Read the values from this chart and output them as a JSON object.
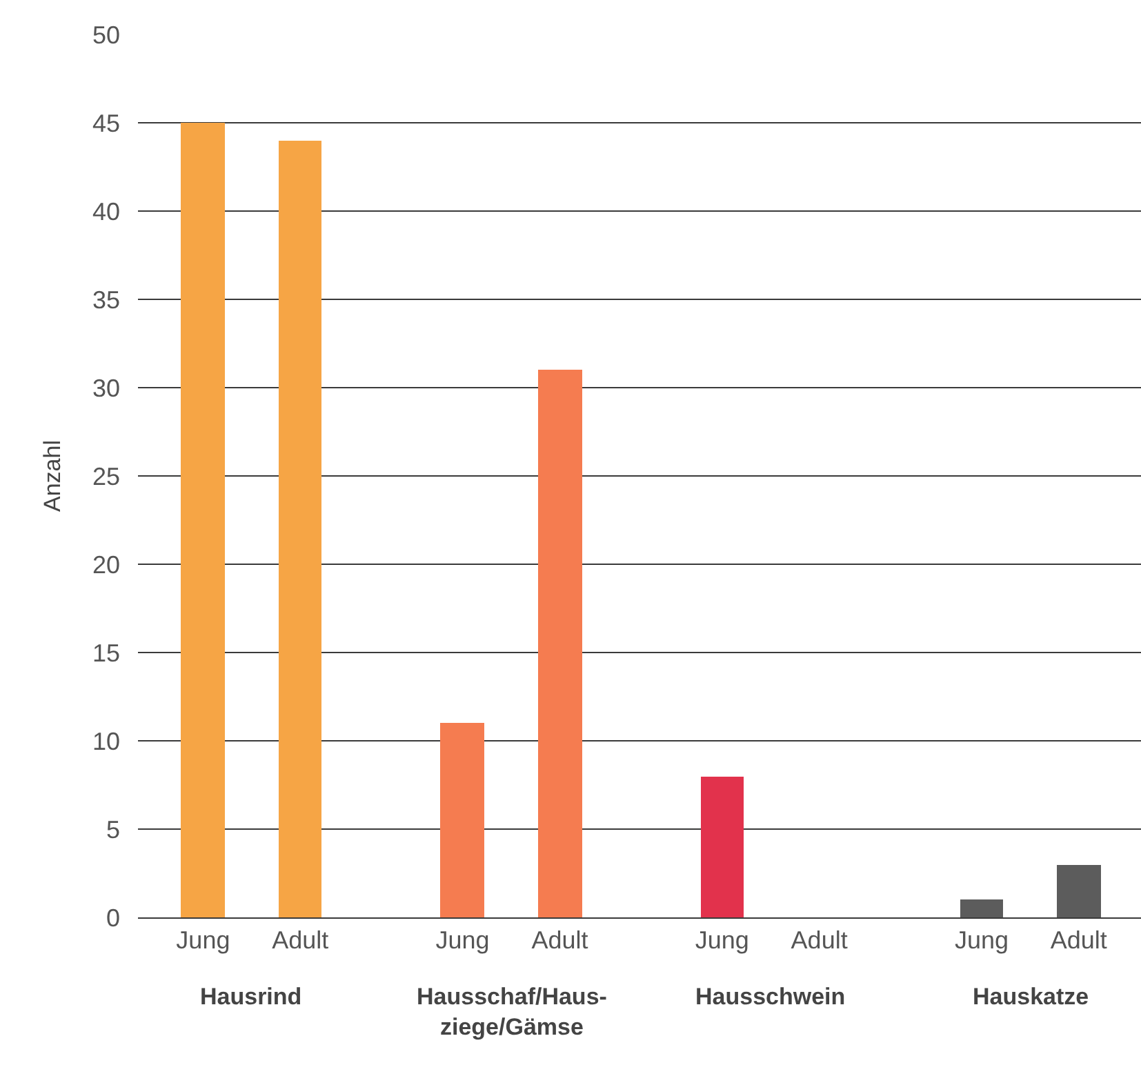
{
  "chart_data": {
    "type": "bar",
    "ylabel": "Anzahl",
    "categories": [
      "Jung",
      "Adult",
      "Jung",
      "Adult",
      "Jung",
      "Adult",
      "Jung",
      "Adult"
    ],
    "values": [
      45,
      44,
      11,
      31,
      8,
      0,
      1,
      3
    ],
    "colors": [
      "#f6a545",
      "#f6a545",
      "#f57c50",
      "#f57c50",
      "#e2324c",
      "#e2324c",
      "#5c5c5c",
      "#5c5c5c"
    ],
    "annotations": [
      "Hausrind",
      "Hausschaf/Haus-\nziege/Gämse",
      "Hausschwein",
      "Hauskatze"
    ],
    "ylim": [
      0,
      50
    ],
    "yticks": [
      0,
      5,
      10,
      15,
      20,
      25,
      30,
      35,
      40,
      45,
      50
    ],
    "grid": "y"
  }
}
